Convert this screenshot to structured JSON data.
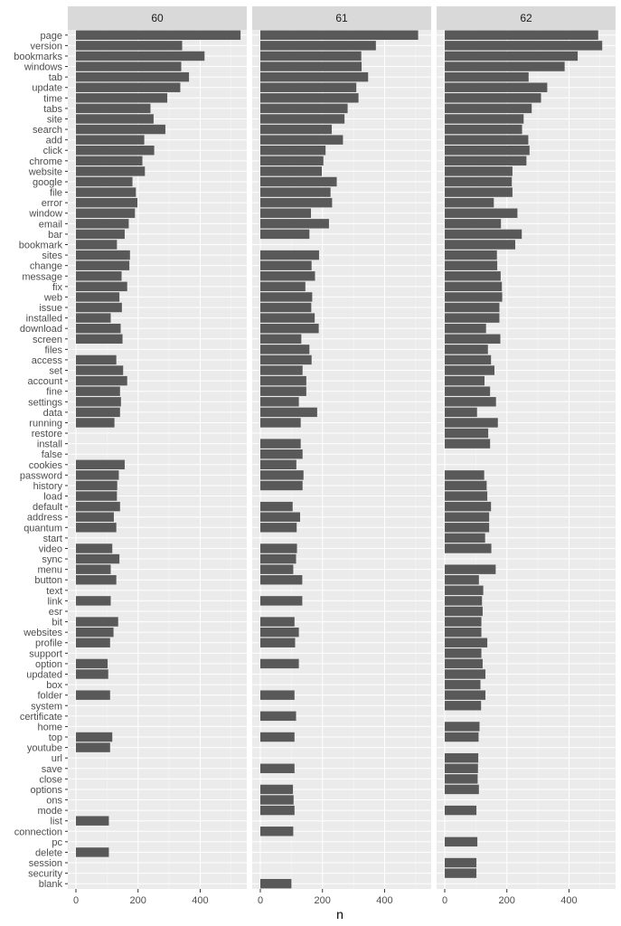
{
  "chart_data": {
    "type": "bar",
    "orientation": "horizontal",
    "facet_by": "panel",
    "xlabel": "n",
    "ylabel": "",
    "xlim": [
      0,
      550
    ],
    "x_ticks": [
      0,
      200,
      400
    ],
    "x_tick_labels": [
      "0",
      "200",
      "400"
    ],
    "grid": true,
    "colors": {
      "bar": "#595959",
      "panel_background": "#ebebeb",
      "grid_major": "#ffffff",
      "strip_background": "#d9d9d9"
    },
    "categories": [
      "page",
      "version",
      "bookmarks",
      "windows",
      "tab",
      "update",
      "time",
      "tabs",
      "site",
      "search",
      "add",
      "click",
      "chrome",
      "website",
      "google",
      "file",
      "error",
      "window",
      "email",
      "bar",
      "bookmark",
      "sites",
      "change",
      "message",
      "fix",
      "web",
      "issue",
      "installed",
      "download",
      "screen",
      "files",
      "access",
      "set",
      "account",
      "fine",
      "settings",
      "data",
      "running",
      "restore",
      "install",
      "false",
      "cookies",
      "password",
      "history",
      "load",
      "default",
      "address",
      "quantum",
      "start",
      "video",
      "sync",
      "menu",
      "button",
      "text",
      "link",
      "esr",
      "bit",
      "websites",
      "profile",
      "support",
      "option",
      "updated",
      "box",
      "folder",
      "system",
      "certificate",
      "home",
      "top",
      "youtube",
      "url",
      "save",
      "close",
      "options",
      "ons",
      "mode",
      "list",
      "connection",
      "pc",
      "delete",
      "session",
      "security",
      "blank"
    ],
    "panels": [
      {
        "name": "60",
        "values": [
          530,
          342,
          414,
          339,
          364,
          336,
          294,
          240,
          250,
          288,
          220,
          252,
          214,
          222,
          182,
          193,
          198,
          190,
          170,
          157,
          132,
          174,
          172,
          147,
          165,
          140,
          148,
          112,
          144,
          150,
          null,
          130,
          152,
          165,
          142,
          145,
          142,
          124,
          null,
          null,
          null,
          157,
          138,
          133,
          132,
          142,
          122,
          130,
          null,
          117,
          140,
          112,
          130,
          null,
          112,
          null,
          136,
          121,
          110,
          null,
          102,
          104,
          null,
          110,
          null,
          null,
          null,
          117,
          110,
          null,
          null,
          null,
          null,
          null,
          null,
          106,
          null,
          null,
          106,
          null,
          null,
          null
        ]
      },
      {
        "name": "61",
        "values": [
          508,
          372,
          325,
          326,
          347,
          309,
          316,
          281,
          271,
          230,
          266,
          210,
          203,
          198,
          246,
          226,
          231,
          163,
          221,
          158,
          null,
          189,
          165,
          176,
          145,
          167,
          164,
          175,
          188,
          132,
          158,
          165,
          136,
          148,
          148,
          124,
          183,
          130,
          null,
          130,
          136,
          116,
          139,
          136,
          null,
          104,
          128,
          117,
          null,
          118,
          115,
          106,
          135,
          null,
          135,
          null,
          110,
          124,
          112,
          null,
          124,
          null,
          null,
          110,
          null,
          115,
          null,
          110,
          null,
          null,
          110,
          null,
          105,
          107,
          110,
          null,
          106,
          null,
          null,
          null,
          null,
          100
        ]
      },
      {
        "name": "62",
        "values": [
          494,
          507,
          428,
          386,
          270,
          330,
          310,
          280,
          254,
          249,
          269,
          273,
          263,
          218,
          216,
          218,
          158,
          234,
          181,
          248,
          227,
          168,
          169,
          180,
          184,
          185,
          176,
          176,
          133,
          179,
          139,
          149,
          160,
          128,
          146,
          165,
          104,
          171,
          140,
          146,
          null,
          null,
          127,
          135,
          137,
          149,
          143,
          143,
          130,
          150,
          null,
          164,
          110,
          124,
          120,
          122,
          118,
          118,
          137,
          118,
          122,
          131,
          115,
          131,
          117,
          null,
          112,
          109,
          null,
          108,
          107,
          106,
          110,
          null,
          102,
          null,
          null,
          105,
          null,
          102,
          102,
          null
        ]
      }
    ]
  }
}
